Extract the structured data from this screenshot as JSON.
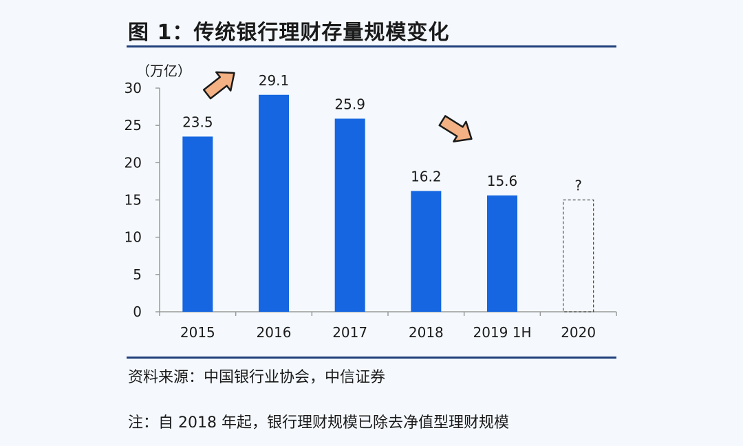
{
  "figure": {
    "title": "图 1：传统银行理财存量规模变化",
    "source": "资料来源：中国银行业协会，中信证券",
    "note": "注：自 2018 年起，银行理财规模已除去净值型理财规模"
  },
  "chart_data": {
    "type": "bar",
    "unit_label": "（万亿）",
    "categories": [
      "2015",
      "2016",
      "2017",
      "2018",
      "2019 1H",
      "2020"
    ],
    "values": [
      23.5,
      29.1,
      25.9,
      16.2,
      15.6,
      15
    ],
    "value_labels": [
      "23.5",
      "29.1",
      "25.9",
      "16.2",
      "15.6",
      "?"
    ],
    "estimated": [
      false,
      false,
      false,
      false,
      false,
      true
    ],
    "ylim": [
      0,
      30
    ],
    "yticks": [
      0,
      5,
      10,
      15,
      20,
      25,
      30
    ],
    "bar_color": "#1566e0",
    "estimate_style": "dashed-outline",
    "grid": false,
    "arrows": [
      {
        "direction": "up-right",
        "near_category": "2016"
      },
      {
        "direction": "down-right",
        "near_category": "2018"
      }
    ],
    "arrow_color": "#f4b183"
  }
}
